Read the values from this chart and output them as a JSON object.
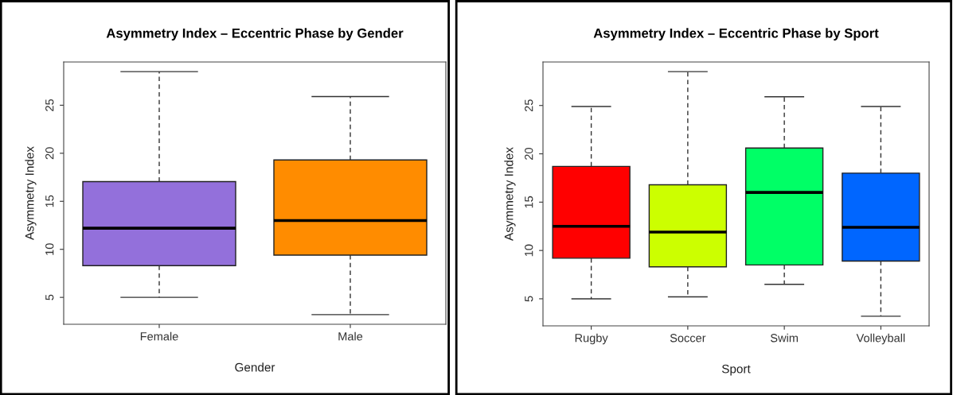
{
  "chart_data": [
    {
      "type": "box",
      "title": "Asymmetry Index – Eccentric Phase by Gender",
      "xlabel": "Gender",
      "ylabel": "Asymmetry Index",
      "categories": [
        "Female",
        "Male"
      ],
      "colors": [
        "#9370db",
        "#ff8c00"
      ],
      "boxes": [
        {
          "low": 5.0,
          "q1": 8.3,
          "median": 12.2,
          "q3": 17.05,
          "high": 28.5
        },
        {
          "low": 3.2,
          "q1": 9.4,
          "median": 13.0,
          "q3": 19.3,
          "high": 25.9
        }
      ],
      "ylim": [
        2.2,
        29.5
      ],
      "yticks": [
        5,
        10,
        15,
        20,
        25
      ],
      "grid": false
    },
    {
      "type": "box",
      "title": "Asymmetry Index – Eccentric Phase by Sport",
      "xlabel": "Sport",
      "ylabel": "Asymmetry Index",
      "categories": [
        "Rugby",
        "Soccer",
        "Swim",
        "Volleyball"
      ],
      "colors": [
        "#ff0000",
        "#ccff00",
        "#00ff66",
        "#0066ff"
      ],
      "boxes": [
        {
          "low": 5.0,
          "q1": 9.2,
          "median": 12.5,
          "q3": 18.7,
          "high": 24.9
        },
        {
          "low": 5.2,
          "q1": 8.3,
          "median": 11.9,
          "q3": 16.8,
          "high": 28.5
        },
        {
          "low": 6.5,
          "q1": 8.5,
          "median": 16.0,
          "q3": 20.6,
          "high": 25.9
        },
        {
          "low": 3.2,
          "q1": 8.9,
          "median": 12.4,
          "q3": 18.0,
          "high": 24.9
        }
      ],
      "ylim": [
        2.2,
        29.5
      ],
      "yticks": [
        5,
        10,
        15,
        20,
        25
      ],
      "grid": false
    }
  ]
}
